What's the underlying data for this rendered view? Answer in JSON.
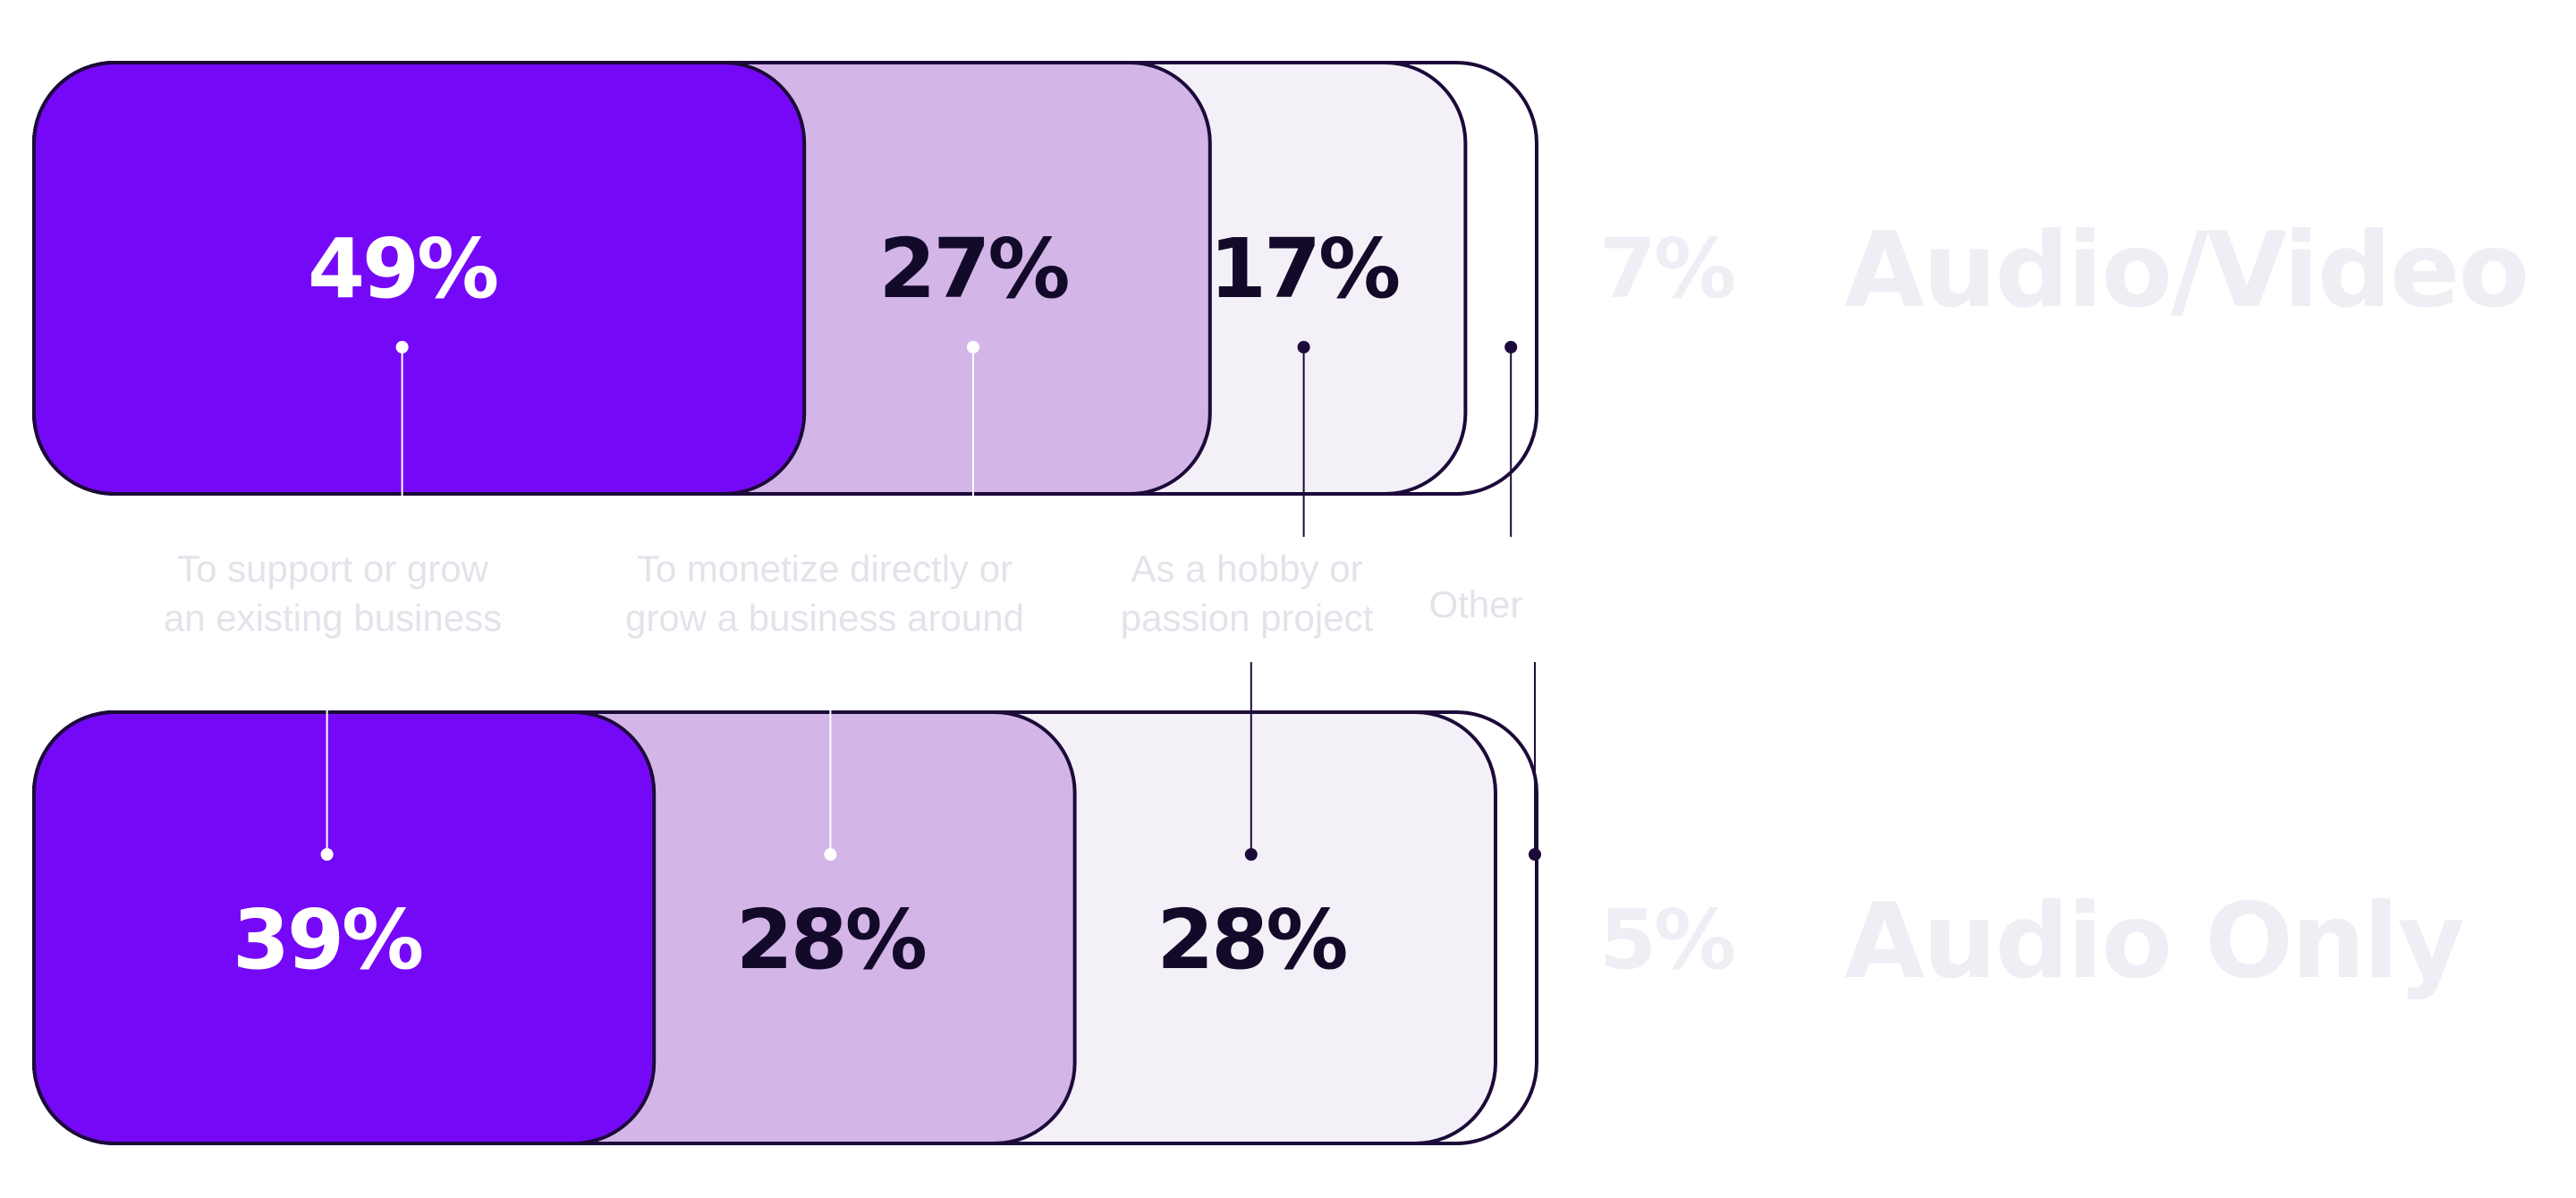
{
  "chart_data": {
    "type": "bar",
    "orientation": "horizontal",
    "stacked": true,
    "categories": [
      "Audio/Video",
      "Audio Only"
    ],
    "series": [
      {
        "name": "To support or grow an existing business",
        "label_lines": [
          "To support or grow",
          "an existing business"
        ],
        "values": [
          49,
          39
        ]
      },
      {
        "name": "To monetize directly or grow a business around",
        "label_lines": [
          "To monetize directly or",
          "grow a business around"
        ],
        "values": [
          27,
          28
        ]
      },
      {
        "name": "As a hobby or passion project",
        "label_lines": [
          "As a hobby or",
          "passion project"
        ],
        "values": [
          17,
          28
        ]
      },
      {
        "name": "Other",
        "label_lines": [
          "Other"
        ],
        "values": [
          7,
          5
        ]
      }
    ],
    "value_suffix": "%",
    "xlim": [
      0,
      100
    ],
    "grid": false,
    "legend": "between-rows",
    "title": "",
    "xlabel": "",
    "ylabel": ""
  },
  "colors": {
    "segments": [
      "#7509f7",
      "#d4b5e8",
      "#f3f0f7",
      "#ffffff"
    ],
    "label_text": [
      "#ffffff",
      "#130a2a",
      "#130a2a",
      "#f0eef4"
    ],
    "outline": "#1c0a3a",
    "row_label": "#f0eef4",
    "category_text": "#e4e2ea",
    "leader_light": "#ffffff",
    "leader_dark": "#1c0a3a"
  }
}
